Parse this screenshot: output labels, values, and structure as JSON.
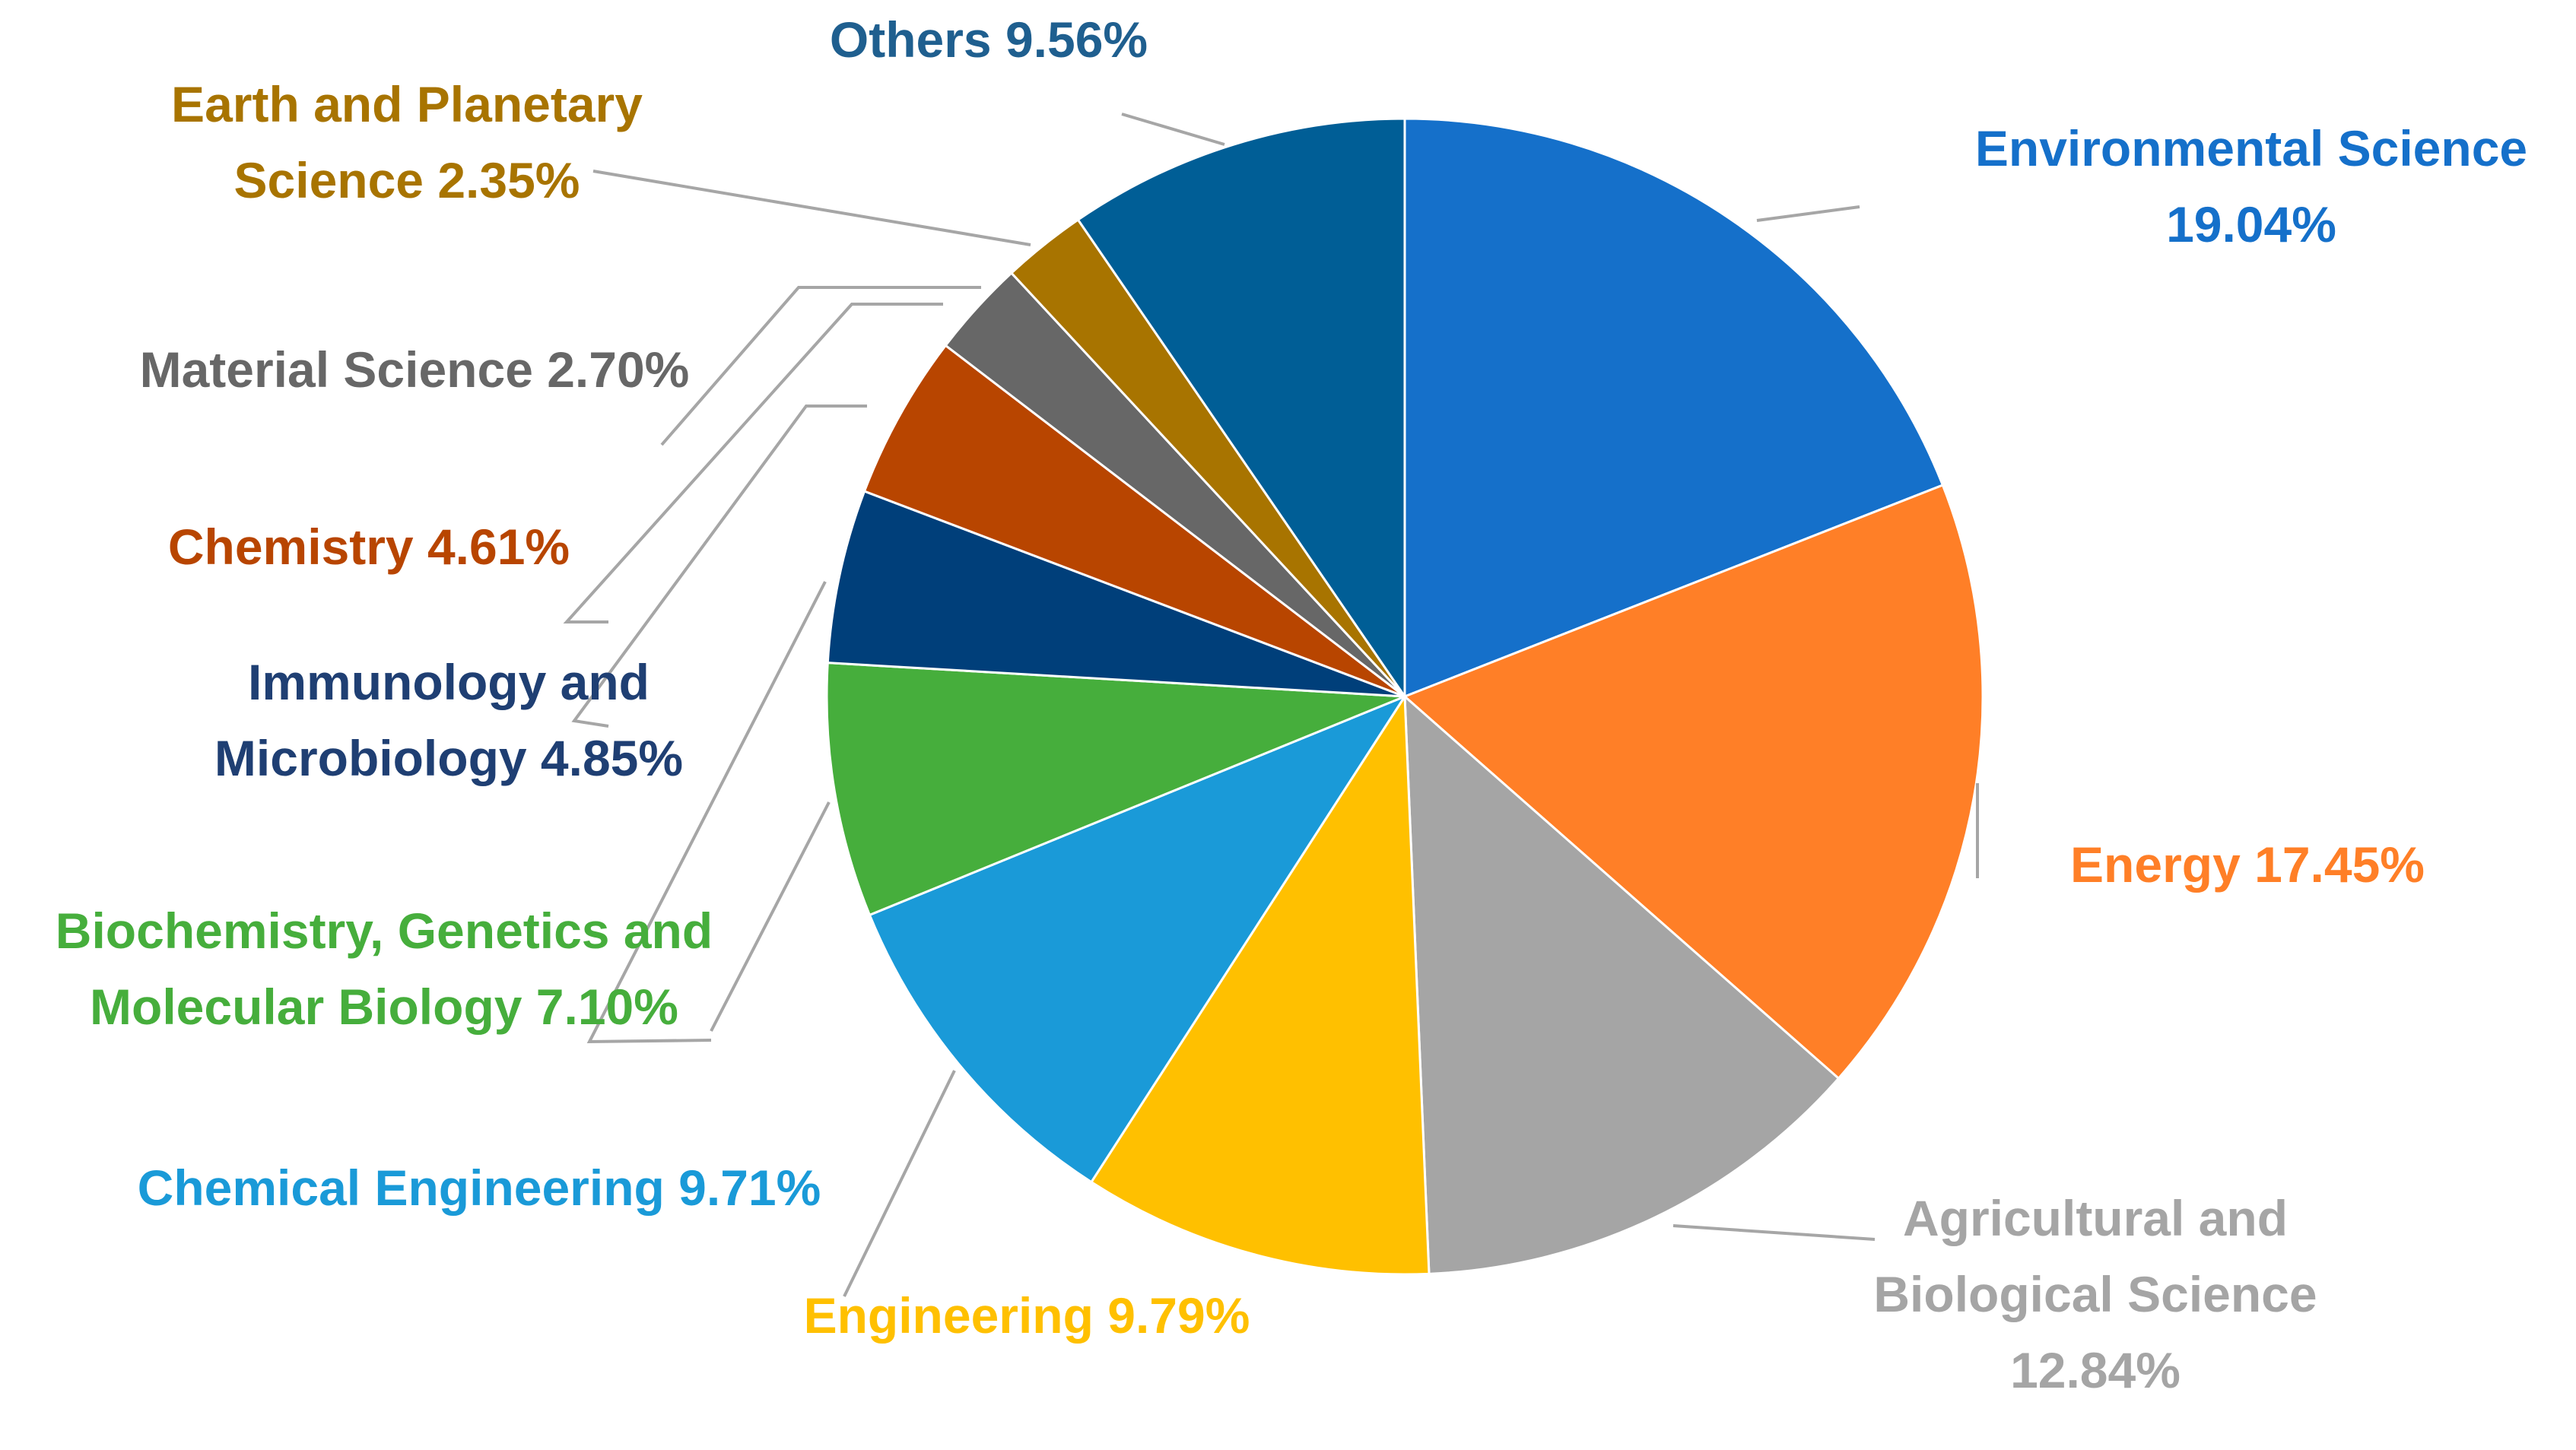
{
  "chart_data": {
    "type": "pie",
    "title": "",
    "start": "12 o'clock",
    "direction": "clockwise",
    "slices": [
      {
        "id": "environmental-science",
        "label": "Environmental Science",
        "value": 19.04,
        "value_label": "19.04%",
        "color": "#1570CA",
        "label_lines": [
          "Environmental Science",
          "19.04%"
        ]
      },
      {
        "id": "energy",
        "label": "Energy",
        "value": 17.45,
        "value_label": "17.45%",
        "color": "#FF7F27",
        "label_lines": [
          "Energy 17.45%"
        ]
      },
      {
        "id": "agricultural-and-biological-science",
        "label": "Agricultural and Biological Science",
        "value": 12.84,
        "value_label": "12.84%",
        "color": "#A5A5A5",
        "label_lines": [
          "Agricultural and",
          "Biological Science",
          "12.84%"
        ]
      },
      {
        "id": "engineering",
        "label": "Engineering",
        "value": 9.79,
        "value_label": "9.79%",
        "color": "#FFC000",
        "label_lines": [
          "Engineering 9.79%"
        ]
      },
      {
        "id": "chemical-engineering",
        "label": "Chemical Engineering",
        "value": 9.71,
        "value_label": "9.71%",
        "color": "#1A9AD8",
        "label_lines": [
          "Chemical Engineering 9.71%"
        ]
      },
      {
        "id": "biochemistry-genetics-and-molecular-biology",
        "label": "Biochemistry, Genetics and Molecular Biology",
        "value": 7.1,
        "value_label": "7.10%",
        "color": "#46AE3C",
        "label_lines": [
          "Biochemistry, Genetics and",
          "Molecular Biology 7.10%"
        ]
      },
      {
        "id": "immunology-and-microbiology",
        "label": "Immunology and Microbiology",
        "value": 4.85,
        "value_label": "4.85%",
        "color": "#003F7A",
        "label_lines": [
          "Immunology and",
          "Microbiology 4.85%"
        ]
      },
      {
        "id": "chemistry",
        "label": "Chemistry",
        "value": 4.61,
        "value_label": "4.61%",
        "color": "#B84500",
        "label_lines": [
          "Chemistry 4.61%"
        ]
      },
      {
        "id": "material-science",
        "label": "Material Science",
        "value": 2.7,
        "value_label": "2.70%",
        "color": "#676767",
        "label_lines": [
          "Material Science 2.70%"
        ]
      },
      {
        "id": "earth-and-planetary-science",
        "label": "Earth and Planetary Science",
        "value": 2.35,
        "value_label": "2.35%",
        "color": "#A87400",
        "label_lines": [
          "Earth and Planetary",
          "Science 2.35%"
        ]
      },
      {
        "id": "others",
        "label": "Others",
        "value": 9.56,
        "value_label": "9.56%",
        "color": "#005E96",
        "label_lines": [
          "Others 9.56%"
        ]
      }
    ],
    "label_colors": {
      "environmental-science": "#1570CA",
      "energy": "#FF7F27",
      "agricultural-and-biological-science": "#A5A5A5",
      "engineering": "#FFC000",
      "chemical-engineering": "#1A9AD8",
      "biochemistry-genetics-and-molecular-biology": "#46AE3C",
      "immunology-and-microbiology": "#1F3F73",
      "chemistry": "#B84500",
      "material-science": "#676767",
      "earth-and-planetary-science": "#A87400",
      "others": "#1F5F8F"
    },
    "leader_color": "#A6A6A6",
    "slice_border_color": "#FFFFFF"
  }
}
